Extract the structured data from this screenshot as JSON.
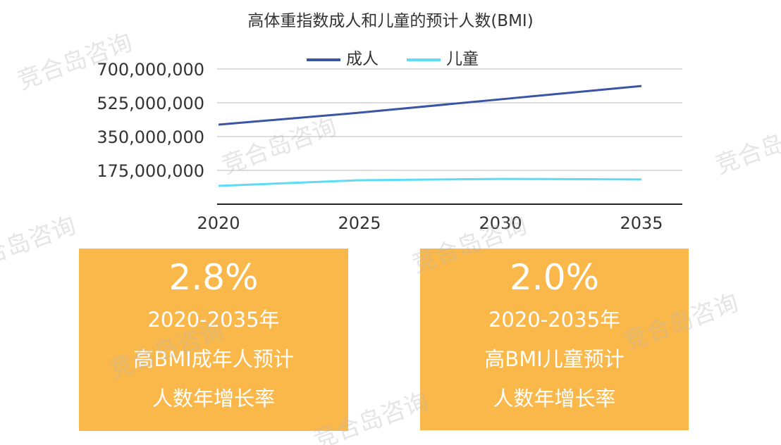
{
  "watermark": "竞合岛咨询",
  "chart_data": {
    "type": "line",
    "title": "高体重指数成人和儿童的预计人数(BMI)",
    "x": [
      "2020",
      "2025",
      "2030",
      "2035"
    ],
    "series": [
      {
        "name": "成人",
        "color": "#3a55a4",
        "values": [
          412000000,
          474000000,
          543000000,
          612000000
        ]
      },
      {
        "name": "儿童",
        "color": "#5cdcf5",
        "values": [
          95000000,
          124000000,
          131000000,
          128000000
        ]
      }
    ],
    "ylim": [
      0,
      700000000
    ],
    "yticks": [
      "175,000,000",
      "350,000,000",
      "525,000,000",
      "700,000,000"
    ],
    "ytick_values": [
      175000000,
      350000000,
      525000000,
      700000000
    ],
    "grid": true,
    "legend": "top"
  },
  "cards": [
    {
      "value": "2.8%",
      "line1": "2020-2035年",
      "line2": "高BMI成年人预计",
      "line3": "人数年增长率"
    },
    {
      "value": "2.0%",
      "line1": "2020-2035年",
      "line2": "高BMI儿童预计",
      "line3": "人数年增长率"
    }
  ]
}
